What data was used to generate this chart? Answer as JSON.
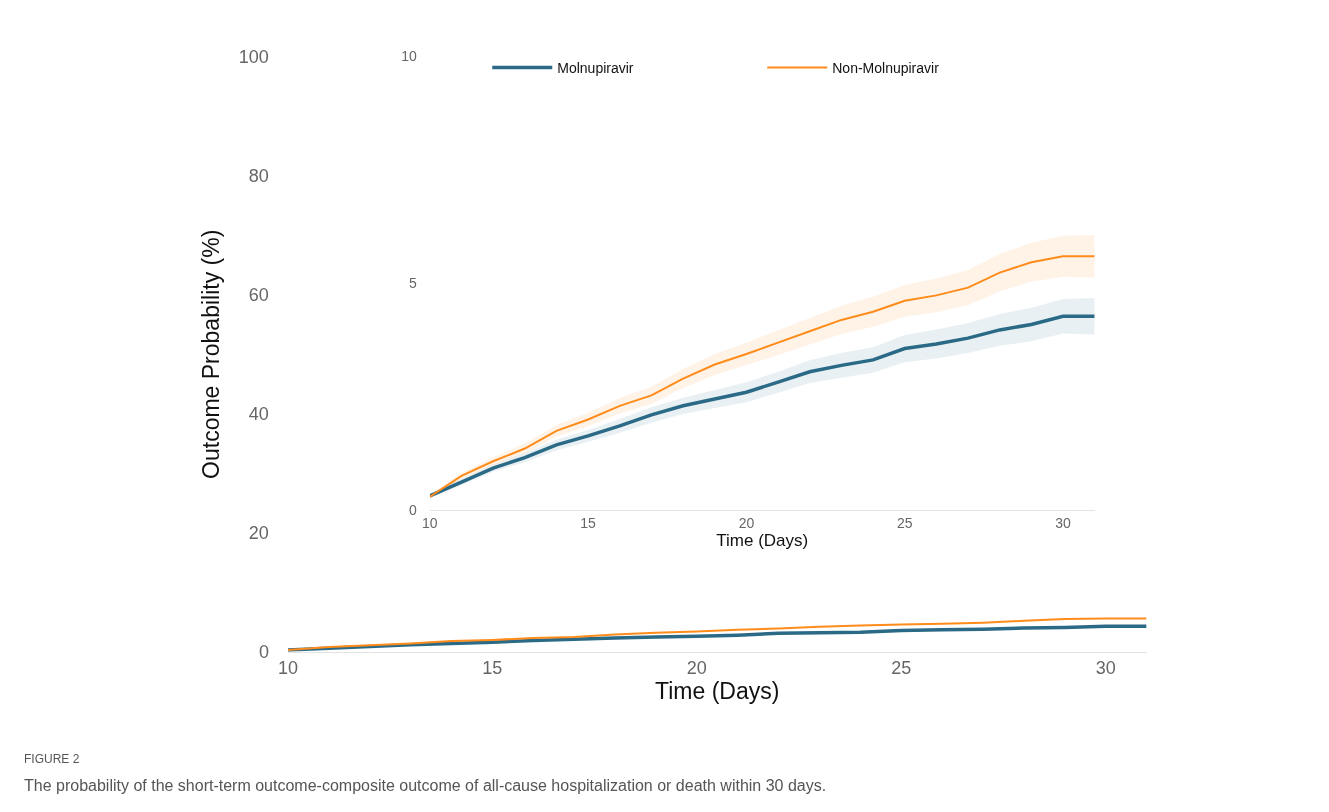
{
  "chart_data": [
    {
      "type": "line",
      "xlabel": "Time (Days)",
      "ylabel": "Outcome Probability (%)",
      "xlim": [
        10,
        31
      ],
      "xticks": [
        10,
        15,
        20,
        25,
        30
      ],
      "ylim": [
        0,
        100
      ],
      "yticks": [
        0,
        20,
        40,
        60,
        80,
        100
      ],
      "grid": false,
      "legend": false,
      "x": [
        10,
        11,
        12,
        13,
        14,
        15,
        16,
        17,
        18,
        19,
        20,
        21,
        22,
        23,
        24,
        25,
        26,
        27,
        28,
        29,
        30,
        31
      ],
      "series": [
        {
          "color": "#2b6a86",
          "values": [
            0.3,
            0.6,
            0.9,
            1.2,
            1.4,
            1.6,
            1.9,
            2.1,
            2.3,
            2.5,
            2.6,
            2.8,
            3.1,
            3.2,
            3.3,
            3.6,
            3.7,
            3.8,
            4.0,
            4.1,
            4.3,
            4.3
          ]
        },
        {
          "color": "#ff8c1a",
          "values": [
            0.3,
            0.8,
            1.1,
            1.4,
            1.8,
            2.0,
            2.3,
            2.5,
            2.9,
            3.2,
            3.4,
            3.7,
            3.9,
            4.2,
            4.4,
            4.6,
            4.7,
            4.9,
            5.2,
            5.5,
            5.6,
            5.6
          ]
        }
      ],
      "annotations": [
        "FIGURE 2",
        "The probability of the short-term outcome-composite outcome of all-cause hospitalization or death within 30 days."
      ]
    },
    {
      "type": "line",
      "xlabel": "Time (Days)",
      "xlim": [
        10,
        31
      ],
      "xticks": [
        10,
        15,
        20,
        25,
        30
      ],
      "ylim": [
        0,
        10
      ],
      "yticks": [
        0,
        5,
        10
      ],
      "grid": false,
      "legend": "top",
      "x": [
        10,
        11,
        12,
        13,
        14,
        15,
        16,
        17,
        18,
        19,
        20,
        21,
        22,
        23,
        24,
        25,
        26,
        27,
        28,
        29,
        30,
        31
      ],
      "series": [
        {
          "name": "Molnupiravir",
          "color": "#2b6a86",
          "values": [
            0.32,
            0.62,
            0.93,
            1.16,
            1.44,
            1.64,
            1.86,
            2.1,
            2.3,
            2.45,
            2.6,
            2.82,
            3.05,
            3.19,
            3.31,
            3.56,
            3.66,
            3.79,
            3.97,
            4.09,
            4.27,
            4.27
          ],
          "lower": [
            0.27,
            0.55,
            0.85,
            1.06,
            1.32,
            1.51,
            1.71,
            1.93,
            2.12,
            2.25,
            2.38,
            2.59,
            2.8,
            2.92,
            3.03,
            3.26,
            3.34,
            3.46,
            3.62,
            3.72,
            3.89,
            3.87
          ],
          "upper": [
            0.37,
            0.69,
            1.01,
            1.26,
            1.56,
            1.77,
            2.01,
            2.27,
            2.48,
            2.65,
            2.82,
            3.05,
            3.3,
            3.46,
            3.59,
            3.86,
            3.98,
            4.12,
            4.32,
            4.46,
            4.65,
            4.67
          ]
        },
        {
          "name": "Non-Molnupiravir",
          "color": "#ff8c1a",
          "values": [
            0.3,
            0.76,
            1.08,
            1.36,
            1.75,
            2.0,
            2.3,
            2.53,
            2.9,
            3.21,
            3.44,
            3.69,
            3.94,
            4.19,
            4.37,
            4.61,
            4.73,
            4.9,
            5.23,
            5.46,
            5.59,
            5.59
          ],
          "lower": [
            0.25,
            0.69,
            0.99,
            1.25,
            1.62,
            1.85,
            2.13,
            2.34,
            2.69,
            2.98,
            3.19,
            3.42,
            3.65,
            3.88,
            4.04,
            4.26,
            4.36,
            4.51,
            4.82,
            5.03,
            5.14,
            5.12
          ],
          "upper": [
            0.35,
            0.83,
            1.17,
            1.47,
            1.88,
            2.15,
            2.47,
            2.72,
            3.11,
            3.44,
            3.69,
            3.96,
            4.23,
            4.5,
            4.7,
            4.96,
            5.1,
            5.29,
            5.64,
            5.89,
            6.04,
            6.06
          ]
        }
      ]
    }
  ]
}
